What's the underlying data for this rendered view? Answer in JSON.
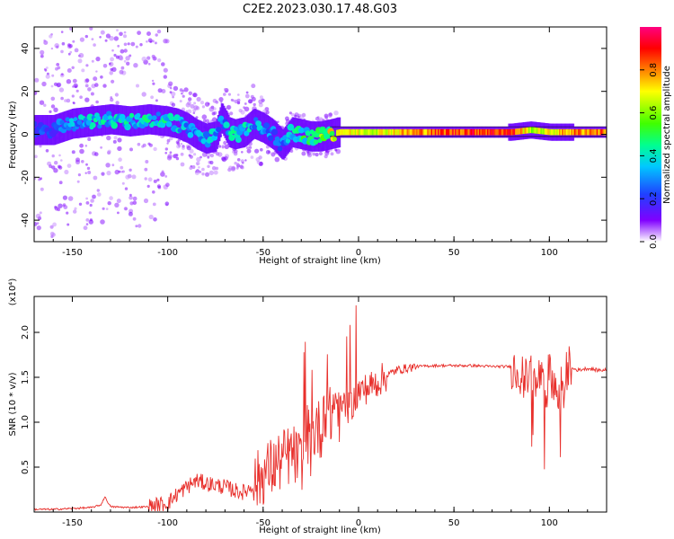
{
  "title": "C2E2.2023.030.17.48.G03",
  "chart_data": [
    {
      "type": "heatmap",
      "xlabel": "Height of straight line (km)",
      "ylabel": "Frequency (Hz)",
      "xlim": [
        -170,
        130
      ],
      "ylim": [
        -50,
        50
      ],
      "x_ticks": [
        -150,
        -100,
        -50,
        0,
        50,
        100
      ],
      "x_tick_labels": [
        "-150",
        "-100",
        "-50",
        "0",
        "50",
        "100"
      ],
      "y_ticks": [
        -40,
        -20,
        0,
        20,
        40
      ],
      "y_tick_labels": [
        "-40",
        "-20",
        "0",
        "20",
        "40"
      ],
      "colorbar": {
        "label": "Normalized spectral amplitude",
        "range": [
          0,
          1
        ],
        "ticks": [
          0.0,
          0.2,
          0.4,
          0.6,
          0.8
        ],
        "tick_labels": [
          "0.0",
          "0.2",
          "0.4",
          "0.6",
          "0.8"
        ],
        "colormap": [
          "#ffffff",
          "#8000ff",
          "#2040ff",
          "#00c8ff",
          "#00ff90",
          "#40ff00",
          "#ffff00",
          "#ff8000",
          "#ff0000",
          "#ff0080"
        ]
      },
      "ridge": {
        "x": [
          -160,
          -150,
          -140,
          -130,
          -120,
          -110,
          -100,
          -95,
          -90,
          -85,
          -80,
          -75,
          -72,
          -68,
          -65,
          -60,
          -55,
          -50,
          -45,
          -40,
          -35,
          -30,
          -25,
          -20,
          -15,
          -10,
          -5,
          0,
          10,
          20,
          40,
          60,
          80,
          90,
          100,
          110,
          130
        ],
        "y": [
          2,
          5,
          6,
          7,
          6,
          7,
          6,
          5,
          3,
          0,
          -2,
          -1,
          8,
          1,
          0,
          1,
          5,
          3,
          0,
          -5,
          1,
          0,
          -1,
          -1,
          0,
          1,
          1,
          1,
          1,
          1,
          1,
          1,
          1,
          2,
          1,
          1,
          1
        ],
        "amplitude": [
          0.25,
          0.35,
          0.4,
          0.45,
          0.45,
          0.45,
          0.45,
          0.4,
          0.35,
          0.35,
          0.4,
          0.4,
          0.3,
          0.4,
          0.45,
          0.45,
          0.35,
          0.35,
          0.3,
          0.3,
          0.4,
          0.5,
          0.55,
          0.6,
          0.7,
          0.75,
          0.7,
          0.7,
          0.7,
          0.75,
          0.85,
          0.9,
          0.9,
          0.65,
          0.7,
          0.8,
          0.85
        ]
      }
    },
    {
      "type": "line",
      "xlabel": "Height of straight line (km)",
      "ylabel": "SNR (10 * v/v)",
      "y_multiplier": "(x10⁴)",
      "xlim": [
        -170,
        130
      ],
      "ylim": [
        0,
        2.4
      ],
      "x_ticks": [
        -150,
        -100,
        -50,
        0,
        50,
        100
      ],
      "x_tick_labels": [
        "-150",
        "-100",
        "-50",
        "0",
        "50",
        "100"
      ],
      "y_ticks": [
        0.5,
        1.0,
        1.5,
        2.0
      ],
      "y_tick_labels": [
        "0.5",
        "1.0",
        "1.5",
        "2.0"
      ],
      "color": "#e8302c",
      "series": [
        {
          "x": [
            -170,
            -160,
            -150,
            -140,
            -135,
            -133,
            -130,
            -120,
            -110,
            -105,
            -100,
            -95,
            -90,
            -85,
            -80,
            -75,
            -70,
            -65,
            -60,
            -55,
            -50,
            -45,
            -40,
            -35,
            -30,
            -27,
            -25,
            -22,
            -20,
            -18,
            -15,
            -12,
            -10,
            -8,
            -5,
            -2,
            0,
            5,
            10,
            15,
            20,
            25,
            30,
            40,
            50,
            60,
            70,
            80,
            85,
            88,
            90,
            93,
            95,
            98,
            100,
            103,
            105,
            107,
            108,
            109,
            110,
            112,
            115,
            120,
            125,
            130
          ],
          "y": [
            0.03,
            0.03,
            0.04,
            0.05,
            0.08,
            0.17,
            0.06,
            0.05,
            0.06,
            0.08,
            0.1,
            0.2,
            0.28,
            0.35,
            0.32,
            0.3,
            0.28,
            0.24,
            0.22,
            0.3,
            0.42,
            0.5,
            0.58,
            0.65,
            0.55,
            0.9,
            0.7,
            1.0,
            0.85,
            1.2,
            1.05,
            1.25,
            1.1,
            1.2,
            1.15,
            1.25,
            1.35,
            1.38,
            1.45,
            1.52,
            1.58,
            1.6,
            1.62,
            1.63,
            1.63,
            1.63,
            1.62,
            1.62,
            1.55,
            1.45,
            1.6,
            1.35,
            1.55,
            1.25,
            1.6,
            1.4,
            1.2,
            1.55,
            1.0,
            1.6,
            1.62,
            1.6,
            1.58,
            1.6,
            1.58,
            1.58
          ]
        }
      ]
    }
  ]
}
